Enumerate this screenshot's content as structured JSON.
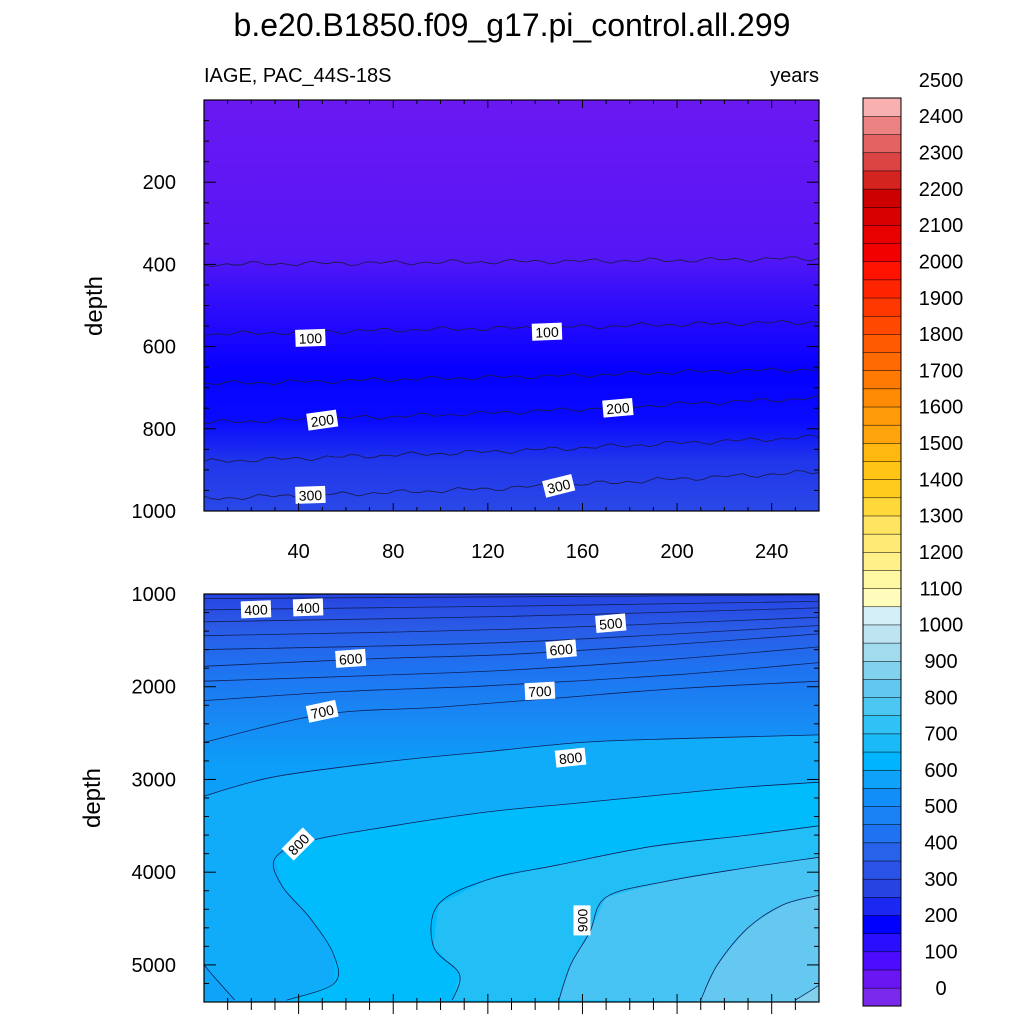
{
  "title": "b.e20.B1850.f09_g17.pi_control.all.299",
  "subtitle_left": "IAGE, PAC_44S-18S",
  "subtitle_right": "years",
  "chart_data": [
    {
      "type": "contour",
      "panel": "upper",
      "ylabel": "depth",
      "xlabel": "",
      "xlim": [
        0,
        260
      ],
      "ylim": [
        1000,
        0
      ],
      "xticks": [
        40,
        80,
        120,
        160,
        200,
        240
      ],
      "xtick_labels": [
        "40",
        "80",
        "120",
        "160",
        "200",
        "240"
      ],
      "yticks": [
        200,
        400,
        600,
        800,
        1000
      ],
      "ytick_labels": [
        "200",
        "400",
        "600",
        "800",
        "1000"
      ],
      "x_profile": [
        0,
        40,
        80,
        120,
        160,
        200,
        260
      ],
      "contours": [
        {
          "level": 50,
          "depths": [
            400,
            398,
            396,
            394,
            392,
            390,
            385
          ]
        },
        {
          "level": 100,
          "depths": [
            570,
            565,
            560,
            556,
            552,
            546,
            540
          ]
        },
        {
          "level": 150,
          "depths": [
            690,
            686,
            680,
            675,
            670,
            662,
            655
          ]
        },
        {
          "level": 200,
          "depths": [
            785,
            778,
            770,
            762,
            752,
            740,
            725
          ]
        },
        {
          "level": 250,
          "depths": [
            880,
            872,
            864,
            856,
            846,
            835,
            820
          ]
        },
        {
          "level": 300,
          "depths": [
            970,
            962,
            955,
            946,
            935,
            922,
            905
          ]
        }
      ],
      "contour_labels": [
        {
          "text": "100",
          "x": 45,
          "y": 580,
          "angle": -2
        },
        {
          "text": "100",
          "x": 145,
          "y": 565,
          "angle": -2
        },
        {
          "text": "200",
          "x": 50,
          "y": 780,
          "angle": -8
        },
        {
          "text": "200",
          "x": 175,
          "y": 750,
          "angle": -5
        },
        {
          "text": "300",
          "x": 45,
          "y": 962,
          "angle": -2
        },
        {
          "text": "300",
          "x": 150,
          "y": 940,
          "angle": -14
        }
      ]
    },
    {
      "type": "contour",
      "panel": "lower",
      "ylabel": "depth",
      "xlabel": "",
      "xlim": [
        0,
        260
      ],
      "ylim": [
        5400,
        1000
      ],
      "yticks": [
        1000,
        2000,
        3000,
        4000,
        5000
      ],
      "ytick_labels": [
        "1000",
        "2000",
        "3000",
        "4000",
        "5000"
      ],
      "contours": [
        {
          "level": 350,
          "points": [
            [
              0,
              1050
            ],
            [
              130,
              1030
            ],
            [
              260,
              1010
            ]
          ]
        },
        {
          "level": 400,
          "points": [
            [
              0,
              1170
            ],
            [
              130,
              1130
            ],
            [
              260,
              1080
            ]
          ]
        },
        {
          "level": 450,
          "points": [
            [
              0,
              1300
            ],
            [
              130,
              1240
            ],
            [
              260,
              1150
            ]
          ]
        },
        {
          "level": 500,
          "points": [
            [
              0,
              1450
            ],
            [
              130,
              1380
            ],
            [
              260,
              1250
            ]
          ]
        },
        {
          "level": 550,
          "points": [
            [
              0,
              1600
            ],
            [
              130,
              1520
            ],
            [
              260,
              1340
            ]
          ]
        },
        {
          "level": 600,
          "points": [
            [
              0,
              1780
            ],
            [
              70,
              1700
            ],
            [
              130,
              1650
            ],
            [
              200,
              1540
            ],
            [
              260,
              1430
            ]
          ]
        },
        {
          "level": 650,
          "points": [
            [
              0,
              1940
            ],
            [
              70,
              1880
            ],
            [
              130,
              1820
            ],
            [
              200,
              1700
            ],
            [
              260,
              1570
            ]
          ]
        },
        {
          "level": 700,
          "points": [
            [
              0,
              2150
            ],
            [
              60,
              2050
            ],
            [
              120,
              1990
            ],
            [
              200,
              1870
            ],
            [
              260,
              1740
            ]
          ]
        },
        {
          "level": 750,
          "points": [
            [
              0,
              2600
            ],
            [
              50,
              2300
            ],
            [
              100,
              2220
            ],
            [
              150,
              2120
            ],
            [
              200,
              2020
            ],
            [
              260,
              1940
            ]
          ]
        },
        {
          "level": 800,
          "points": [
            [
              0,
              3180
            ],
            [
              30,
              2970
            ],
            [
              80,
              2800
            ],
            [
              120,
              2700
            ],
            [
              160,
              2600
            ],
            [
              200,
              2560
            ],
            [
              260,
              2520
            ]
          ]
        },
        {
          "level": 810,
          "points": [
            [
              0,
              5000
            ],
            [
              5,
              5150
            ],
            [
              13,
              5380
            ]
          ]
        },
        {
          "level": 820,
          "points": [
            [
              35,
              5380
            ],
            [
              55,
              5200
            ],
            [
              55,
              4900
            ],
            [
              45,
              4500
            ],
            [
              33,
              4150
            ],
            [
              30,
              3850
            ],
            [
              45,
              3660
            ],
            [
              80,
              3500
            ],
            [
              120,
              3350
            ],
            [
              160,
              3250
            ],
            [
              200,
              3150
            ],
            [
              230,
              3080
            ],
            [
              260,
              3030
            ]
          ]
        },
        {
          "level": 850,
          "points": [
            [
              105,
              5380
            ],
            [
              108,
              5100
            ],
            [
              97,
              4800
            ],
            [
              99,
              4350
            ],
            [
              120,
              4080
            ],
            [
              150,
              3920
            ],
            [
              190,
              3720
            ],
            [
              230,
              3600
            ],
            [
              260,
              3500
            ]
          ]
        },
        {
          "level": 900,
          "points": [
            [
              150,
              5380
            ],
            [
              155,
              5000
            ],
            [
              163,
              4650
            ],
            [
              170,
              4270
            ],
            [
              195,
              4100
            ],
            [
              230,
              3950
            ],
            [
              260,
              3840
            ]
          ]
        },
        {
          "level": 950,
          "points": [
            [
              210,
              5380
            ],
            [
              217,
              5000
            ],
            [
              230,
              4600
            ],
            [
              245,
              4350
            ],
            [
              260,
              4250
            ]
          ]
        },
        {
          "level": 1000,
          "points": [
            [
              250,
              5380
            ],
            [
              260,
              5220
            ]
          ]
        }
      ],
      "contour_labels": [
        {
          "text": "400",
          "x": 22,
          "y": 1170,
          "angle": -2
        },
        {
          "text": "400",
          "x": 44,
          "y": 1150,
          "angle": -2
        },
        {
          "text": "500",
          "x": 172,
          "y": 1320,
          "angle": -5
        },
        {
          "text": "600",
          "x": 62,
          "y": 1700,
          "angle": -4
        },
        {
          "text": "600",
          "x": 151,
          "y": 1600,
          "angle": -5
        },
        {
          "text": "700",
          "x": 50,
          "y": 2270,
          "angle": -12
        },
        {
          "text": "700",
          "x": 142,
          "y": 2050,
          "angle": -3
        },
        {
          "text": "800",
          "x": 155,
          "y": 2770,
          "angle": -6
        },
        {
          "text": "800",
          "x": 40,
          "y": 3700,
          "angle": -45
        },
        {
          "text": "900",
          "x": 160,
          "y": 4520,
          "angle": -90
        }
      ]
    }
  ],
  "colorbar": {
    "labels": [
      "0",
      "100",
      "200",
      "300",
      "400",
      "500",
      "600",
      "700",
      "800",
      "900",
      "1000",
      "1100",
      "1200",
      "1300",
      "1400",
      "1500",
      "1600",
      "1700",
      "1800",
      "1900",
      "2000",
      "2100",
      "2200",
      "2300",
      "2400",
      "2500"
    ],
    "colors": [
      "#7a28eb",
      "#6a16f3",
      "#4c0cff",
      "#2a0eff",
      "#0000ff",
      "#1a28f2",
      "#2644e2",
      "#2b52e6",
      "#2862e8",
      "#1f72f0",
      "#1a82f5",
      "#128ef9",
      "#0ea2fb",
      "#00b4fd",
      "#1abaf8",
      "#30c2f6",
      "#4cc6f2",
      "#62c8f0",
      "#82d2ee",
      "#a2daee",
      "#bee4f2",
      "#d4eef8",
      "#fffcbc",
      "#fff8a2",
      "#fff08a",
      "#ffea76",
      "#ffe462",
      "#ffd83a",
      "#ffcc1e",
      "#ffc414",
      "#ffb810",
      "#ffa40c",
      "#ff9a08",
      "#ff8a04",
      "#ff7a02",
      "#ff6a02",
      "#ff5a00",
      "#ff4800",
      "#ff3800",
      "#ff2400",
      "#ff1200",
      "#f20000",
      "#e80000",
      "#d80000",
      "#cc0000",
      "#d42420",
      "#dc4444",
      "#e46262",
      "#ec8282",
      "#f8b0b0"
    ]
  }
}
